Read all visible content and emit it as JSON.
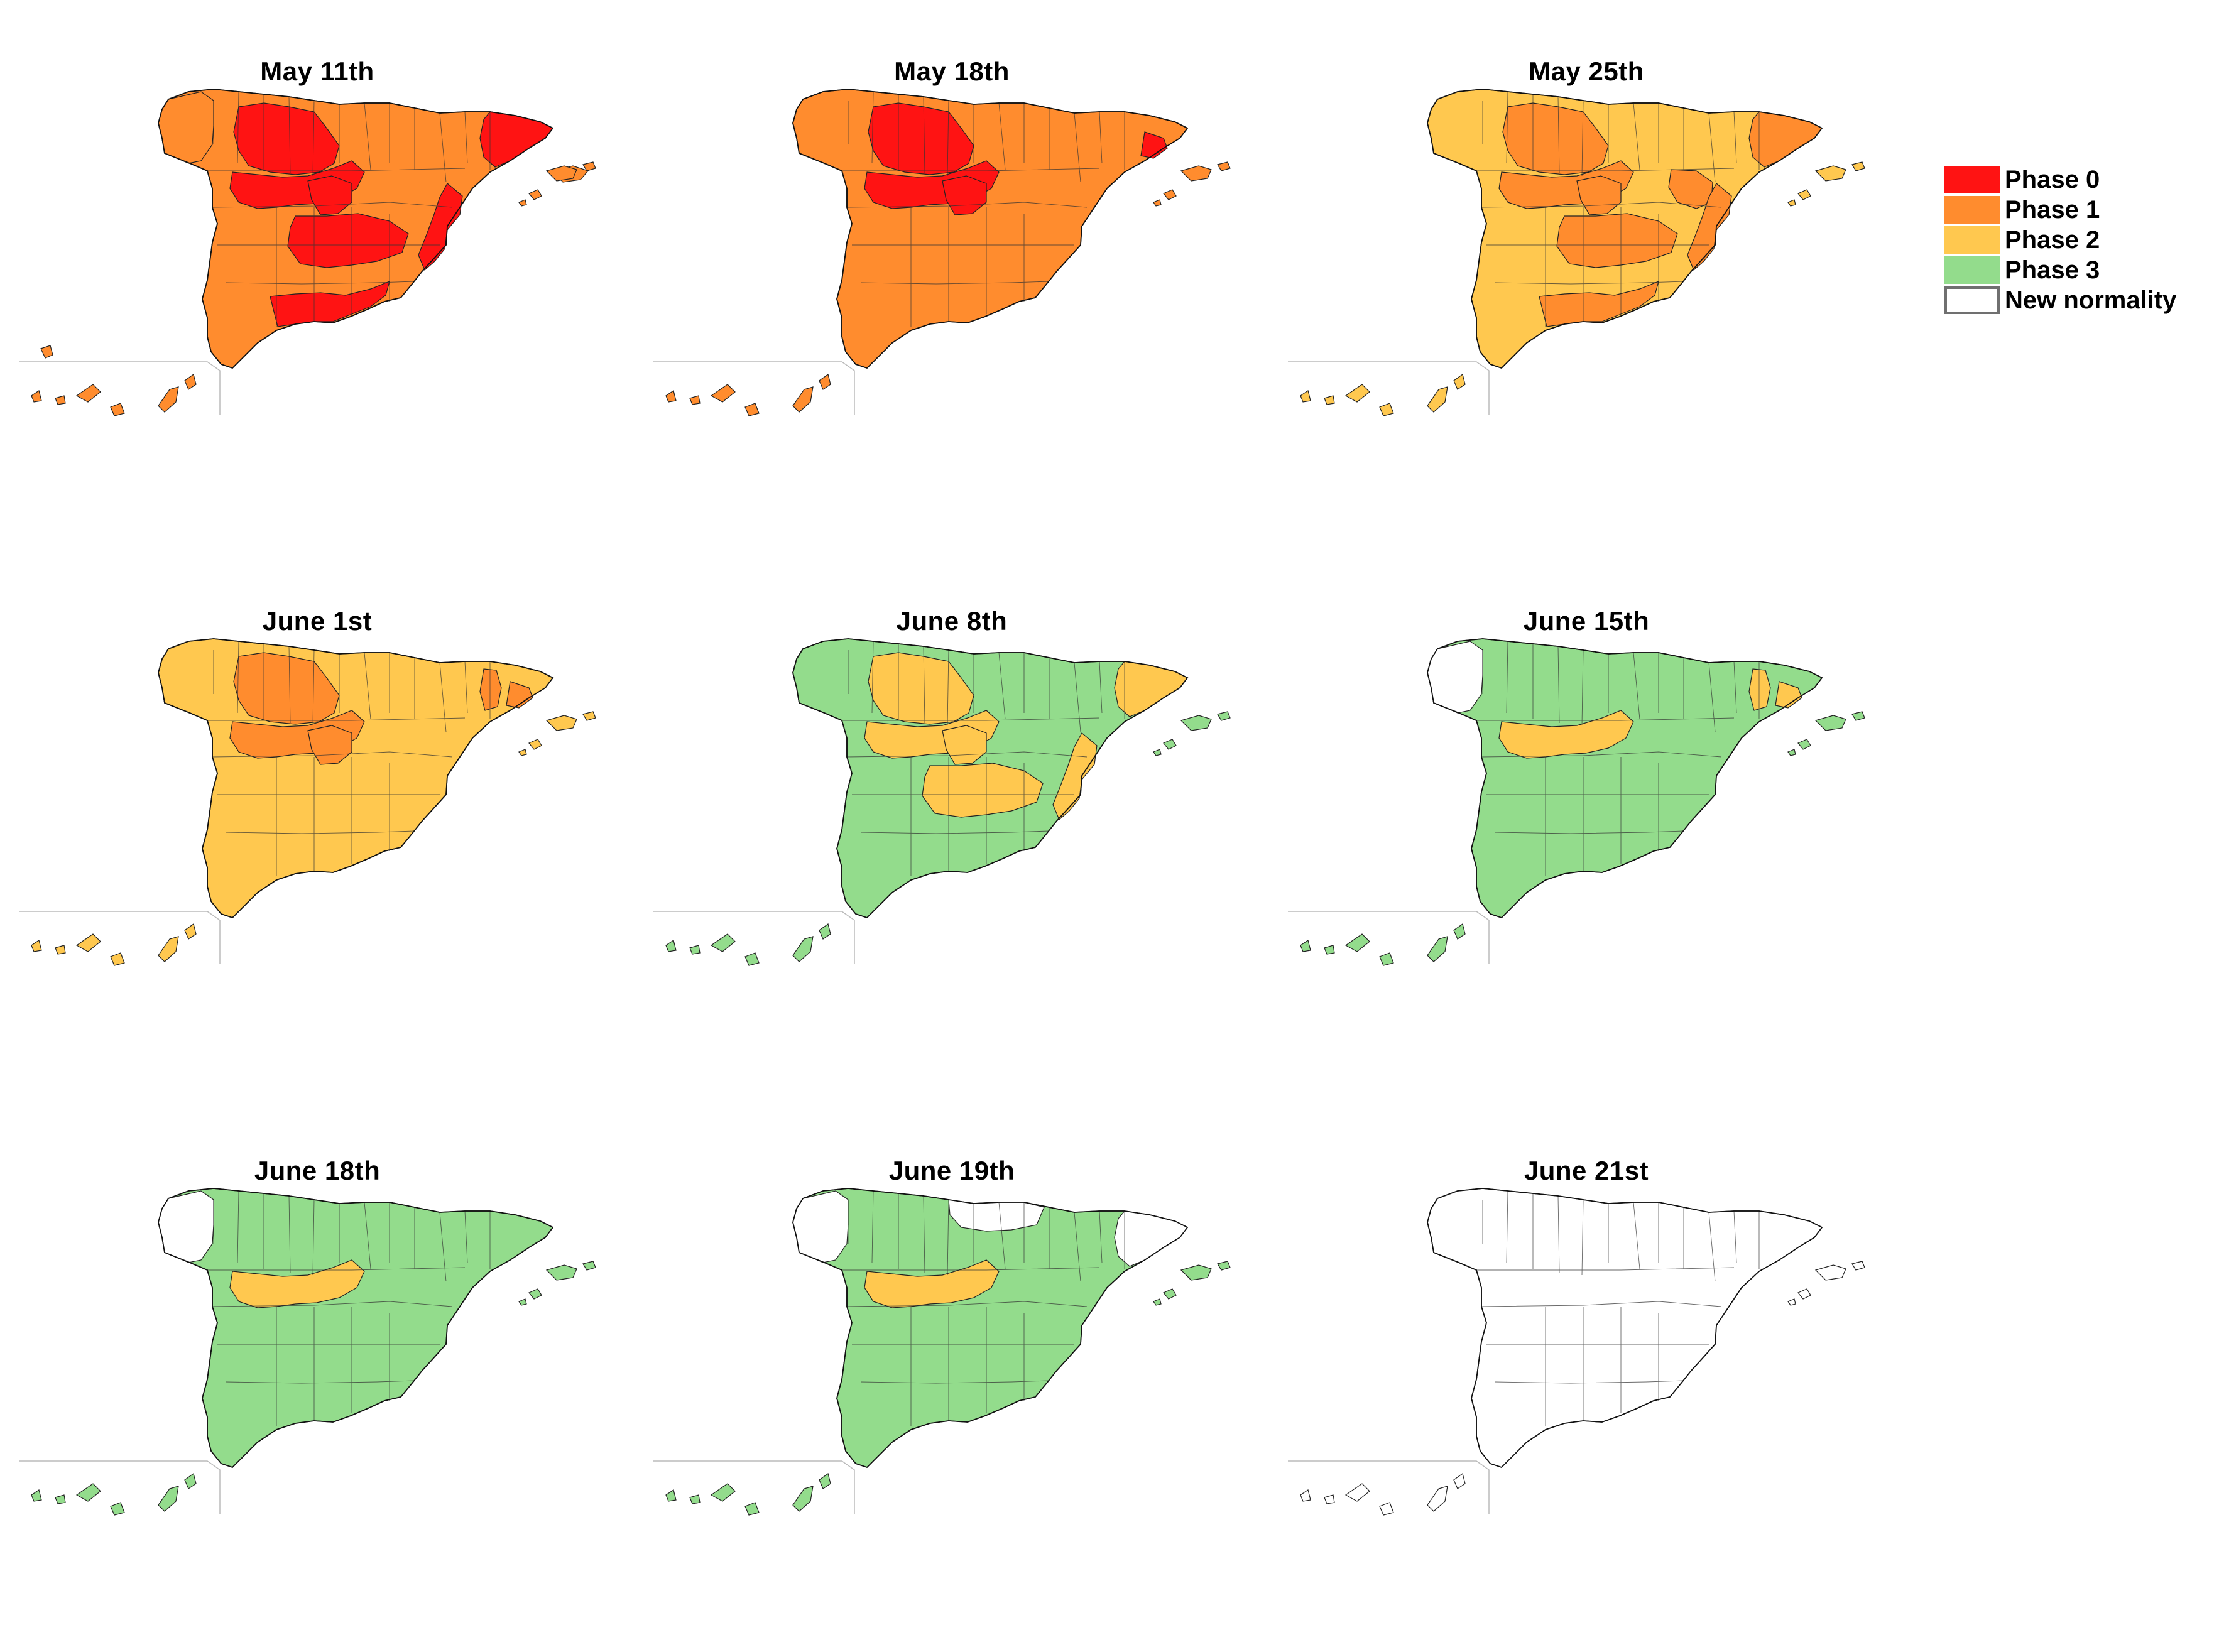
{
  "phases": {
    "0": {
      "label": "Phase 0",
      "color": "#ff1313"
    },
    "1": {
      "label": "Phase 1",
      "color": "#ff8c2e"
    },
    "2": {
      "label": "Phase 2",
      "color": "#ffc84f"
    },
    "3": {
      "label": "Phase 3",
      "color": "#93dc8c"
    },
    "4": {
      "label": "New normality",
      "color": "#ffffff"
    }
  },
  "legend_order": [
    "0",
    "1",
    "2",
    "3",
    "4"
  ],
  "maps": [
    {
      "title": "May 11th",
      "base_phase": "1",
      "zone_phases": {
        "castilla-leon-north": "0",
        "castilla-leon-south": "0",
        "madrid": "0",
        "castilla-la-mancha": "0",
        "andalucia-east": "0",
        "catalonia": "0",
        "valencia": "0",
        "galicia": "1",
        "canarias": "1",
        "baleares": "1"
      }
    },
    {
      "title": "May 18th",
      "base_phase": "1",
      "zone_phases": {
        "castilla-leon-north": "0",
        "castilla-leon-south": "0",
        "madrid": "0",
        "barcelona": "0"
      }
    },
    {
      "title": "May 25th",
      "base_phase": "2",
      "zone_phases": {
        "castilla-leon-north": "1",
        "castilla-leon-south": "1",
        "madrid": "1",
        "castilla-la-mancha": "1",
        "andalucia-east": "1",
        "catalonia": "1",
        "aragon-south": "1",
        "valencia": "1"
      }
    },
    {
      "title": "June 1st",
      "base_phase": "2",
      "zone_phases": {
        "castilla-leon-north": "1",
        "castilla-leon-south": "1",
        "madrid": "1",
        "lleida": "1",
        "barcelona": "1"
      }
    },
    {
      "title": "June 8th",
      "base_phase": "3",
      "zone_phases": {
        "castilla-leon-north": "2",
        "castilla-leon-south": "2",
        "madrid": "2",
        "castilla-la-mancha": "2",
        "valencia": "2",
        "catalonia": "2"
      }
    },
    {
      "title": "June 15th",
      "base_phase": "3",
      "zone_phases": {
        "galicia": "4",
        "castilla-leon-south": "2",
        "lleida": "2",
        "barcelona": "2"
      }
    },
    {
      "title": "June 18th",
      "base_phase": "3",
      "zone_phases": {
        "galicia": "4",
        "castilla-leon-south": "2"
      }
    },
    {
      "title": "June 19th",
      "base_phase": "3",
      "zone_phases": {
        "galicia": "4",
        "cantabria-basque": "4",
        "catalonia": "4",
        "castilla-leon-south": "2"
      }
    },
    {
      "title": "June 21st",
      "base_phase": "4",
      "zone_phases": {}
    }
  ]
}
